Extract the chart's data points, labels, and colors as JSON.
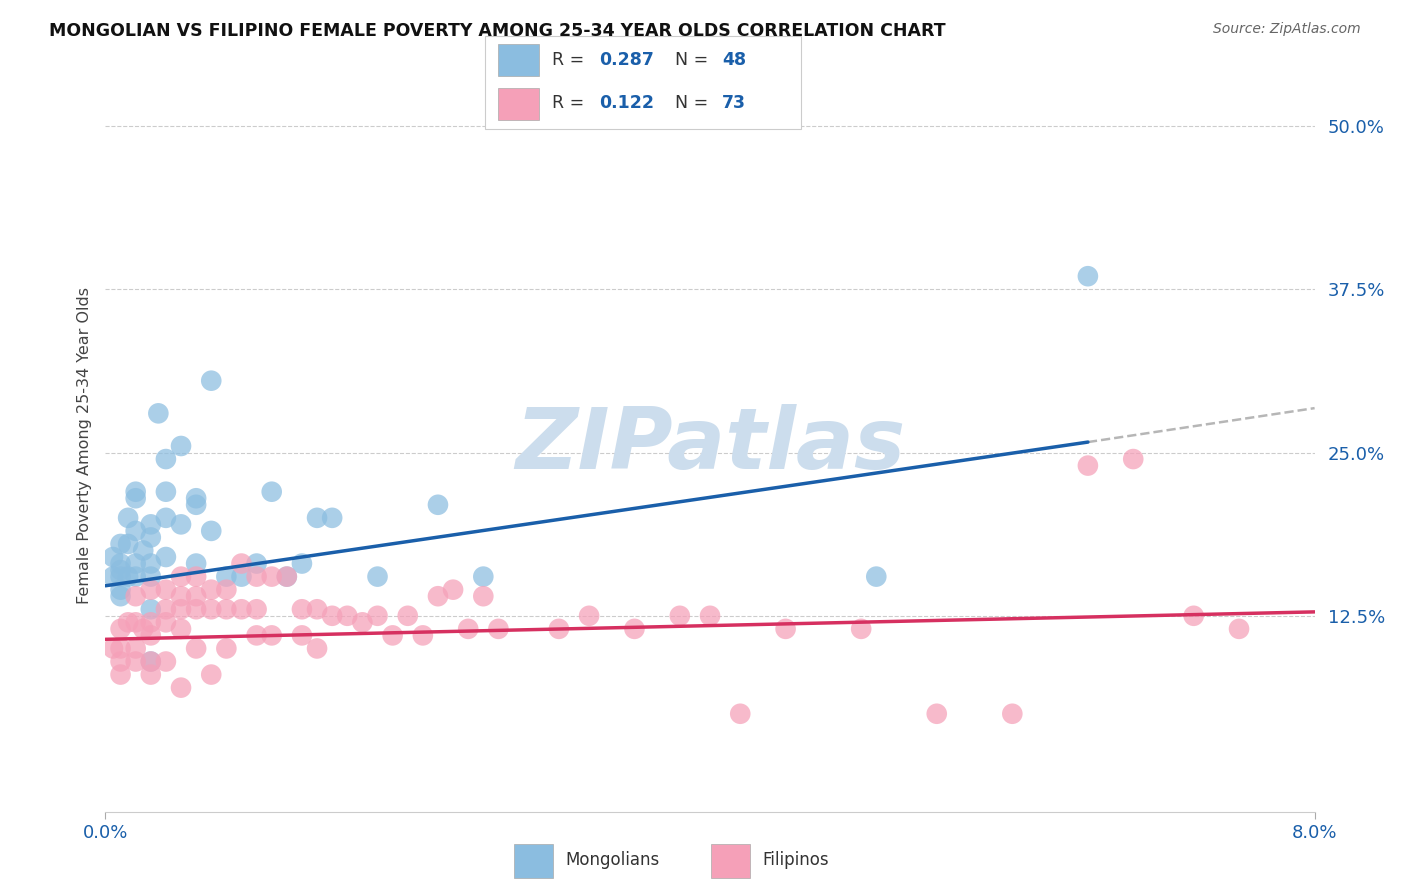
{
  "title": "MONGOLIAN VS FILIPINO FEMALE POVERTY AMONG 25-34 YEAR OLDS CORRELATION CHART",
  "source": "Source: ZipAtlas.com",
  "ylabel": "Female Poverty Among 25-34 Year Olds",
  "ytick_vals": [
    0.0,
    0.125,
    0.25,
    0.375,
    0.5
  ],
  "ytick_labels": [
    "",
    "12.5%",
    "25.0%",
    "37.5%",
    "50.0%"
  ],
  "xlim": [
    0.0,
    0.08
  ],
  "ylim": [
    -0.025,
    0.535
  ],
  "mongolian_color": "#8bbde0",
  "filipino_color": "#f5a0b8",
  "mongolian_line_color": "#1a5faa",
  "filipino_line_color": "#d63060",
  "dashed_line_color": "#aaaaaa",
  "tick_color": "#1a5faa",
  "watermark_color": "#ccdded",
  "mongolians_x": [
    0.0005,
    0.0005,
    0.001,
    0.001,
    0.001,
    0.001,
    0.001,
    0.001,
    0.0015,
    0.0015,
    0.0015,
    0.002,
    0.002,
    0.002,
    0.002,
    0.002,
    0.0025,
    0.003,
    0.003,
    0.003,
    0.003,
    0.003,
    0.003,
    0.0035,
    0.004,
    0.004,
    0.004,
    0.004,
    0.005,
    0.005,
    0.006,
    0.006,
    0.006,
    0.007,
    0.007,
    0.008,
    0.009,
    0.01,
    0.011,
    0.012,
    0.013,
    0.014,
    0.015,
    0.018,
    0.022,
    0.025,
    0.051,
    0.065
  ],
  "mongolians_y": [
    0.155,
    0.17,
    0.14,
    0.16,
    0.18,
    0.155,
    0.145,
    0.165,
    0.2,
    0.18,
    0.155,
    0.215,
    0.19,
    0.22,
    0.155,
    0.165,
    0.175,
    0.195,
    0.165,
    0.185,
    0.155,
    0.13,
    0.09,
    0.28,
    0.22,
    0.245,
    0.17,
    0.2,
    0.255,
    0.195,
    0.215,
    0.165,
    0.21,
    0.305,
    0.19,
    0.155,
    0.155,
    0.165,
    0.22,
    0.155,
    0.165,
    0.2,
    0.2,
    0.155,
    0.21,
    0.155,
    0.155,
    0.385
  ],
  "filipinos_x": [
    0.0005,
    0.001,
    0.001,
    0.001,
    0.001,
    0.0015,
    0.002,
    0.002,
    0.002,
    0.002,
    0.0025,
    0.003,
    0.003,
    0.003,
    0.003,
    0.003,
    0.004,
    0.004,
    0.004,
    0.004,
    0.005,
    0.005,
    0.005,
    0.005,
    0.005,
    0.006,
    0.006,
    0.006,
    0.006,
    0.007,
    0.007,
    0.007,
    0.008,
    0.008,
    0.008,
    0.009,
    0.009,
    0.01,
    0.01,
    0.01,
    0.011,
    0.011,
    0.012,
    0.013,
    0.013,
    0.014,
    0.014,
    0.015,
    0.016,
    0.017,
    0.018,
    0.019,
    0.02,
    0.021,
    0.022,
    0.023,
    0.024,
    0.025,
    0.026,
    0.03,
    0.032,
    0.035,
    0.038,
    0.04,
    0.042,
    0.045,
    0.05,
    0.055,
    0.06,
    0.065,
    0.068,
    0.072,
    0.075
  ],
  "filipinos_y": [
    0.1,
    0.115,
    0.1,
    0.09,
    0.08,
    0.12,
    0.14,
    0.12,
    0.09,
    0.1,
    0.115,
    0.145,
    0.12,
    0.11,
    0.09,
    0.08,
    0.145,
    0.13,
    0.12,
    0.09,
    0.155,
    0.14,
    0.13,
    0.115,
    0.07,
    0.155,
    0.14,
    0.13,
    0.1,
    0.145,
    0.13,
    0.08,
    0.145,
    0.13,
    0.1,
    0.165,
    0.13,
    0.155,
    0.13,
    0.11,
    0.155,
    0.11,
    0.155,
    0.13,
    0.11,
    0.13,
    0.1,
    0.125,
    0.125,
    0.12,
    0.125,
    0.11,
    0.125,
    0.11,
    0.14,
    0.145,
    0.115,
    0.14,
    0.115,
    0.115,
    0.125,
    0.115,
    0.125,
    0.125,
    0.05,
    0.115,
    0.115,
    0.05,
    0.05,
    0.24,
    0.245,
    0.125,
    0.115
  ],
  "blue_line_x0": 0.0,
  "blue_line_y0": 0.148,
  "blue_line_x1": 0.065,
  "blue_line_y1": 0.258,
  "dash_line_x0": 0.065,
  "dash_line_y0": 0.258,
  "dash_line_x1": 0.08,
  "dash_line_y1": 0.284,
  "pink_line_x0": 0.0,
  "pink_line_y0": 0.107,
  "pink_line_x1": 0.08,
  "pink_line_y1": 0.128
}
